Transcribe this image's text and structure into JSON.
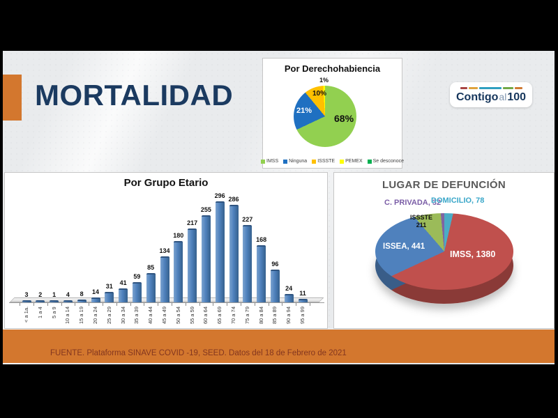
{
  "slide": {
    "title": "MORTALIDAD",
    "footer_text": "FUENTE. Plataforma SINAVE COVID -19, SEED. Datos del 18 de Febrero de 2021",
    "logo": {
      "word1": "Contigo",
      "word2": "al",
      "word3": "100"
    }
  },
  "colors": {
    "accent_orange": "#d3772e",
    "title_navy": "#1b3a60",
    "footer_text": "#83361f",
    "panel_border": "#c6c6c6",
    "bar_blue": "#4f81bd"
  },
  "chart_data": [
    {
      "type": "pie",
      "title": "Por Derechohabiencia",
      "labels": [
        "IMSS",
        "Ninguna",
        "ISSSTE",
        "PEMEX",
        "Se desconoce"
      ],
      "values_percent": [
        68,
        21,
        10,
        1,
        0
      ],
      "colors": [
        "#92d050",
        "#1f70c1",
        "#ffc000",
        "#ffff00",
        "#00b050"
      ],
      "draw_order": [
        0,
        1,
        2,
        3,
        4
      ],
      "slice_labels": {
        "imss": "68%",
        "ninguna": "21%",
        "issste": "10%",
        "pemex": "1%"
      },
      "legend_position": "bottom"
    },
    {
      "type": "bar",
      "title": "Por Grupo Etario",
      "categories": [
        "< a 1a.",
        "1 a 4",
        "5 a 9",
        "10 a 14",
        "15 a 19",
        "20 a 24",
        "25 a 29",
        "30 a 34",
        "35 a 39",
        "40 a 44",
        "45 a 49",
        "50 a 54",
        "55 a 59",
        "60 a 64",
        "65 a 69",
        "70 a 74",
        "75 a 79",
        "80 a 84",
        "85 a 89",
        "90 a 94",
        "95 a 99"
      ],
      "values": [
        3,
        2,
        1,
        4,
        8,
        14,
        31,
        41,
        59,
        85,
        134,
        180,
        217,
        255,
        296,
        286,
        227,
        168,
        96,
        24,
        11
      ],
      "ylim": [
        0,
        300
      ],
      "bar_color": "#4f81bd",
      "data_labels": true,
      "grid": false
    },
    {
      "type": "pie",
      "style": "3d",
      "title": "LUGAR DE DEFUNCIÓN",
      "labels": [
        "IMSS",
        "ISSEA",
        "ISSSTE",
        "C. PRIVADA",
        "DOMICILIO"
      ],
      "values": [
        1380,
        441,
        211,
        32,
        78
      ],
      "colors": [
        "#c0504d",
        "#4f81bd",
        "#9bbb59",
        "#8064a2",
        "#4bacc6"
      ],
      "draw_order": [
        4,
        0,
        1,
        2,
        3
      ],
      "callouts": {
        "imss": "IMSS, 1380",
        "issea": "ISSEA, 441",
        "issste_line1": "ISSSTE",
        "issste_line2": "211",
        "privada": "C. PRIVADA, 32",
        "domicilio": "DOMICILIO, 78"
      },
      "callout_colors": {
        "privada": "#7b5ea7",
        "domicilio": "#3aa7c9"
      }
    }
  ]
}
